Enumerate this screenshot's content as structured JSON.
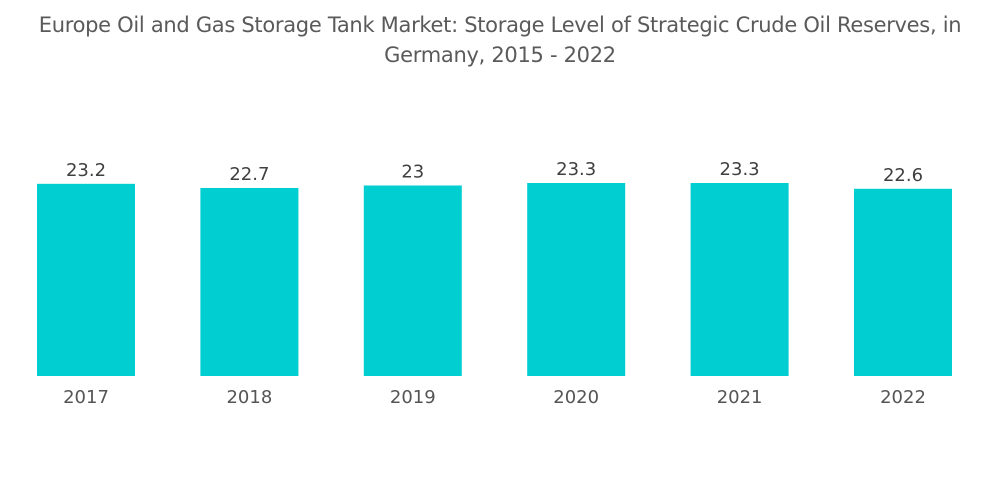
{
  "chart_data": {
    "type": "bar",
    "title": "Europe Oil and Gas Storage Tank Market: Storage Level of Strategic Crude Oil Reserves, in Germany, 2015 - 2022",
    "title_line1": "Europe Oil and Gas Storage Tank Market: Storage Level of Strategic Crude Oil Reserves, in",
    "title_line2": "Germany, 2015 - 2022",
    "categories": [
      "2017",
      "2018",
      "2019",
      "2020",
      "2021",
      "2022"
    ],
    "values": [
      23.2,
      22.7,
      23,
      23.3,
      23.3,
      22.6
    ],
    "value_labels": [
      "23.2",
      "22.7",
      "23",
      "23.3",
      "23.3",
      "22.6"
    ],
    "xlabel": "",
    "ylabel": "",
    "ylim": [
      0,
      23.3
    ],
    "grid": false,
    "legend": "none",
    "bar_color": "#00CED1"
  }
}
